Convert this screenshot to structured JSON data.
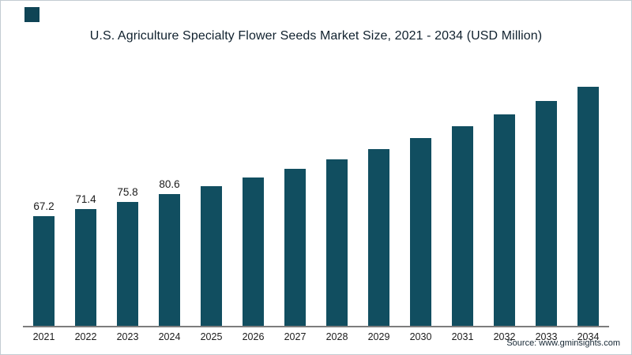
{
  "logo": {
    "color": "#0f4455"
  },
  "chart_data": {
    "type": "bar",
    "title": "U.S. Agriculture Specialty Flower Seeds Market Size, 2021 - 2034 (USD Million)",
    "categories": [
      "2021",
      "2022",
      "2023",
      "2024",
      "2025",
      "2026",
      "2027",
      "2028",
      "2029",
      "2030",
      "2031",
      "2032",
      "2033",
      "2034"
    ],
    "values": [
      67.2,
      71.4,
      75.8,
      80.6,
      85.5,
      90.8,
      96.3,
      102.2,
      108.5,
      115.2,
      122.3,
      129.9,
      137.9,
      146.4
    ],
    "data_labels": [
      "67.2",
      "71.4",
      "75.8",
      "80.6",
      "",
      "",
      "",
      "",
      "",
      "",
      "",
      "",
      "",
      ""
    ],
    "bar_color": "#114e60",
    "xlabel": "",
    "ylabel": "",
    "ylim": [
      0,
      150
    ],
    "grid": false,
    "legend": false
  },
  "source": {
    "text": "Source: www.gminsights.com"
  }
}
